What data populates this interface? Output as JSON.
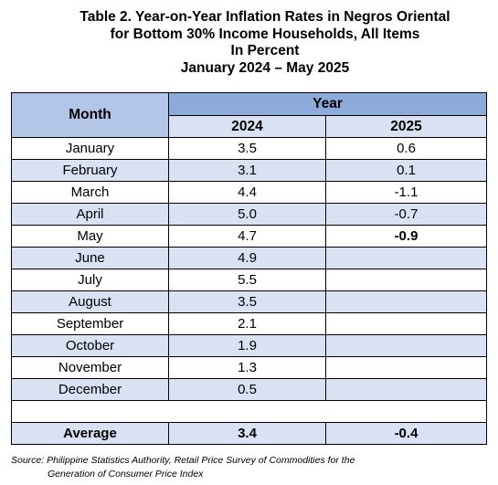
{
  "title": {
    "lines": [
      "Table 2. Year-on-Year Inflation Rates in Negros Oriental",
      "for Bottom 30% Income Households, All Items",
      "In Percent",
      "January 2024 – May 2025"
    ]
  },
  "table": {
    "header": {
      "month": "Month",
      "year": "Year",
      "years": [
        "2024",
        "2025"
      ]
    },
    "rows": [
      [
        "January",
        "3.5",
        "0.6"
      ],
      [
        "February",
        "3.1",
        "0.1"
      ],
      [
        "March",
        "4.4",
        "-1.1"
      ],
      [
        "April",
        "5.0",
        "-0.7"
      ],
      [
        "May",
        "4.7",
        "-0.9"
      ],
      [
        "June",
        "4.9"
      ],
      [
        "July",
        "5.5"
      ],
      [
        "August",
        "3.5"
      ],
      [
        "September",
        "2.1"
      ],
      [
        "October",
        "1.9"
      ],
      [
        "November",
        "1.3"
      ],
      [
        "December",
        "0.5"
      ]
    ],
    "average": [
      "Average",
      "3.4",
      "-0.4"
    ]
  },
  "source": [
    "Source: Philippine Statistics Authority, Retail Price Survey of Commodities for the",
    "Generation of Consumer Price Index"
  ]
}
